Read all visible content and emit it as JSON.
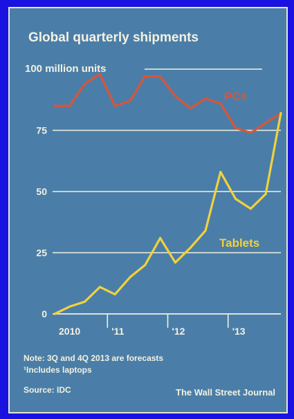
{
  "chart_data": {
    "type": "line",
    "title": "Global quarterly shipments",
    "ylabel": "100 million units",
    "ylim": [
      0,
      100
    ],
    "y_ticks": [
      0,
      25,
      50,
      75
    ],
    "x_tick_labels": [
      "2010",
      "'11",
      "'12",
      "'13"
    ],
    "grid": true,
    "x": [
      "Q1 2010",
      "Q2 2010",
      "Q3 2010",
      "Q4 2010",
      "Q1 2011",
      "Q2 2011",
      "Q3 2011",
      "Q4 2011",
      "Q1 2012",
      "Q2 2012",
      "Q3 2012",
      "Q4 2012",
      "Q1 2013",
      "Q2 2013",
      "Q3 2013",
      "Q4 2013"
    ],
    "series": [
      {
        "name": "PCs",
        "color": "#d8553a",
        "values": [
          85,
          85,
          94,
          98,
          85,
          87,
          97,
          97,
          89,
          84,
          88,
          86,
          76,
          74,
          78,
          82
        ]
      },
      {
        "name": "Tablets",
        "color": "#f2d13c",
        "values": [
          0,
          3,
          5,
          11,
          8,
          15,
          20,
          31,
          21,
          27,
          34,
          58,
          47,
          43,
          49,
          82
        ]
      }
    ],
    "notes": {
      "note": "Note: 3Q and 4Q 2013 are forecasts",
      "footnote": "¹Includes laptops",
      "source": "Source: IDC",
      "credit": "The Wall Street Journal"
    }
  }
}
